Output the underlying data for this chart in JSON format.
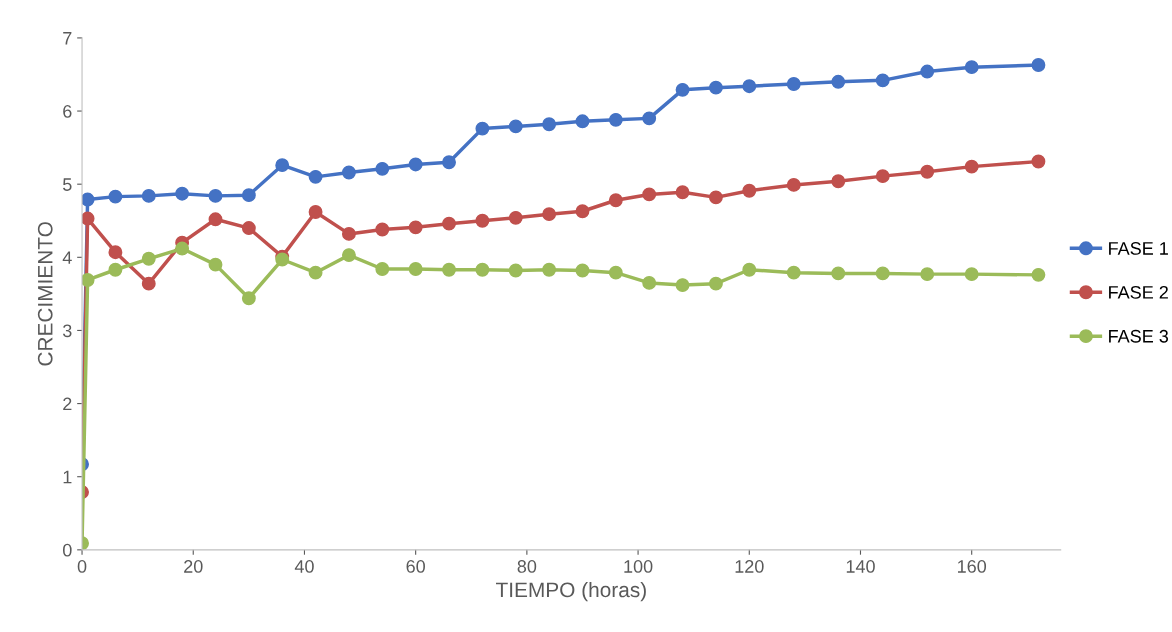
{
  "chart_data": {
    "type": "line",
    "xlabel": "TIEMPO (horas)",
    "ylabel": "CRECIMIENTO",
    "x": [
      0,
      1,
      6,
      12,
      18,
      24,
      30,
      36,
      42,
      48,
      54,
      60,
      66,
      72,
      78,
      84,
      90,
      96,
      102,
      108,
      114,
      120,
      128,
      136,
      144,
      152,
      160,
      172
    ],
    "series": [
      {
        "name": "FASE 1",
        "color": "#4472c4",
        "values": [
          1.17,
          4.79,
          4.83,
          4.84,
          4.87,
          4.84,
          4.85,
          5.26,
          5.1,
          5.16,
          5.21,
          5.27,
          5.3,
          5.76,
          5.79,
          5.82,
          5.86,
          5.88,
          5.9,
          6.29,
          6.32,
          6.34,
          6.37,
          6.4,
          6.42,
          6.54,
          6.6,
          6.63
        ]
      },
      {
        "name": "FASE 2",
        "color": "#c0504d",
        "values": [
          0.79,
          4.53,
          4.07,
          3.64,
          4.2,
          4.52,
          4.4,
          4.01,
          4.62,
          4.32,
          4.38,
          4.41,
          4.46,
          4.5,
          4.54,
          4.59,
          4.63,
          4.78,
          4.86,
          4.89,
          4.82,
          4.91,
          4.99,
          5.04,
          5.11,
          5.17,
          5.24,
          5.31
        ]
      },
      {
        "name": "FASE 3",
        "color": "#9bbb59",
        "values": [
          0.09,
          3.69,
          3.83,
          3.98,
          4.12,
          3.9,
          3.44,
          3.97,
          3.79,
          4.03,
          3.84,
          3.84,
          3.83,
          3.83,
          3.82,
          3.83,
          3.82,
          3.79,
          3.65,
          3.62,
          3.64,
          3.83,
          3.79,
          3.78,
          3.78,
          3.77,
          3.77,
          3.76
        ]
      }
    ],
    "xlim": [
      0,
      176
    ],
    "xticks": [
      0,
      20,
      40,
      60,
      80,
      100,
      120,
      140,
      160
    ],
    "ylim": [
      0,
      7
    ],
    "yticks": [
      0,
      1,
      2,
      3,
      4,
      5,
      6,
      7
    ],
    "grid": false,
    "legend": "right",
    "marker": "circle",
    "line_style": "solid"
  }
}
